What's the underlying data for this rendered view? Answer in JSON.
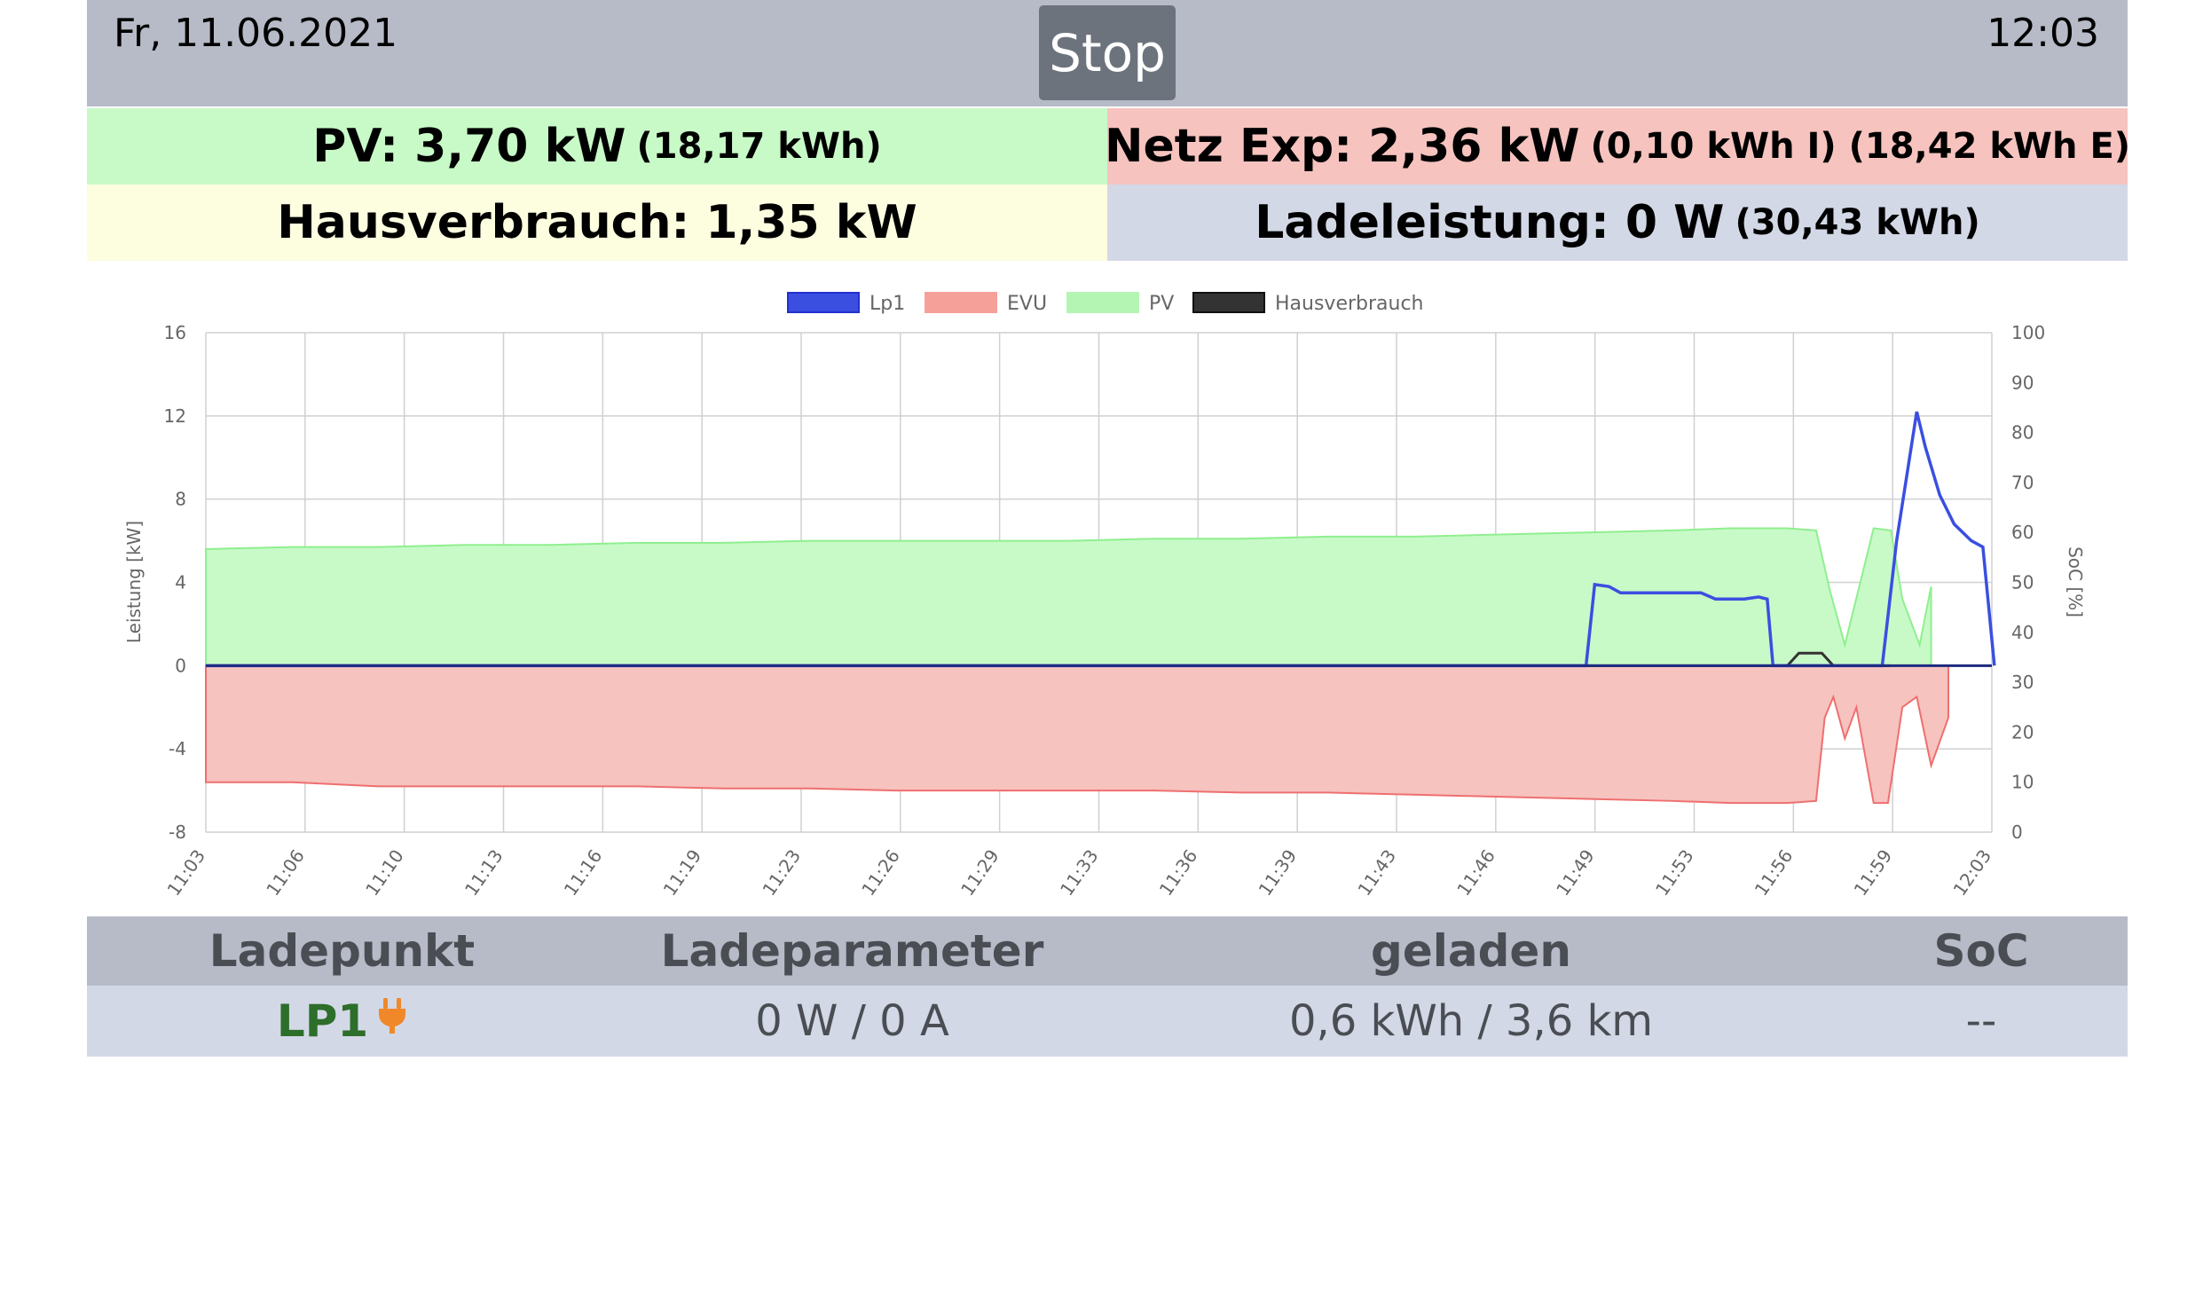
{
  "header": {
    "date": "Fr, 11.06.2021",
    "time": "12:03",
    "stop_label": "Stop"
  },
  "tiles": {
    "pv": {
      "main": "PV: 3,70 kW",
      "sub": "(18,17 kWh)"
    },
    "netz": {
      "main": "Netz Exp: 2,36 kW",
      "sub": "(0,10 kWh I) (18,42 kWh E)"
    },
    "haus": {
      "main": "Hausverbrauch: 1,35 kW"
    },
    "lade": {
      "main": "Ladeleistung: 0 W",
      "sub": "(30,43 kWh)"
    }
  },
  "colors": {
    "pv_fill": "#c8fac8",
    "pv_line": "#8fef8f",
    "evu_fill": "#f6c3bf",
    "evu_line": "#ef6f6f",
    "lp1": "#3a4fe0",
    "haus": "#333333",
    "grid": "#d0d0d0",
    "axis_text": "#666666",
    "lp_name": "#2c6e2a",
    "plug_icon": "#f0882a"
  },
  "chart_data": {
    "type": "line",
    "legend": [
      {
        "name": "Lp1",
        "color": "#3a4fe0"
      },
      {
        "name": "EVU",
        "color": "#f6a09a"
      },
      {
        "name": "PV",
        "color": "#b4f5b4"
      },
      {
        "name": "Hausverbrauch",
        "color": "#333333"
      }
    ],
    "legend_position": "top",
    "ylabel": "Leistung [kW]",
    "y2label": "SoC [%]",
    "ylim": [
      -8,
      16
    ],
    "yticks": [
      -8,
      -4,
      0,
      4,
      8,
      12,
      16
    ],
    "y2lim": [
      0,
      100
    ],
    "y2ticks": [
      0,
      10,
      20,
      30,
      40,
      50,
      60,
      70,
      80,
      90,
      100
    ],
    "xlim": [
      0,
      60
    ],
    "xtick_labels": [
      "11:03",
      "11:06",
      "11:10",
      "11:13",
      "11:16",
      "11:19",
      "11:23",
      "11:26",
      "11:29",
      "11:33",
      "11:36",
      "11:39",
      "11:43",
      "11:46",
      "11:49",
      "11:53",
      "11:56",
      "11:59",
      "12:03"
    ],
    "grid": true,
    "series": [
      {
        "name": "PV",
        "points": [
          [
            0,
            5.6
          ],
          [
            3,
            5.7
          ],
          [
            6,
            5.7
          ],
          [
            9,
            5.8
          ],
          [
            12,
            5.8
          ],
          [
            15,
            5.9
          ],
          [
            18,
            5.9
          ],
          [
            21,
            6.0
          ],
          [
            24,
            6.0
          ],
          [
            27,
            6.0
          ],
          [
            30,
            6.0
          ],
          [
            33,
            6.1
          ],
          [
            36,
            6.1
          ],
          [
            39,
            6.2
          ],
          [
            42,
            6.2
          ],
          [
            45,
            6.3
          ],
          [
            48,
            6.4
          ],
          [
            51,
            6.5
          ],
          [
            53,
            6.6
          ],
          [
            55,
            6.6
          ],
          [
            56,
            6.5
          ],
          [
            56.5,
            3.5
          ],
          [
            57,
            1.0
          ],
          [
            58,
            6.6
          ],
          [
            58.6,
            6.5
          ],
          [
            59,
            3.2
          ],
          [
            59.6,
            1.0
          ],
          [
            60,
            3.8
          ]
        ]
      },
      {
        "name": "EVU",
        "points": [
          [
            0,
            -5.6
          ],
          [
            3,
            -5.6
          ],
          [
            6,
            -5.8
          ],
          [
            9,
            -5.8
          ],
          [
            12,
            -5.8
          ],
          [
            15,
            -5.8
          ],
          [
            18,
            -5.9
          ],
          [
            21,
            -5.9
          ],
          [
            24,
            -6.0
          ],
          [
            27,
            -6.0
          ],
          [
            30,
            -6.0
          ],
          [
            33,
            -6.0
          ],
          [
            36,
            -6.1
          ],
          [
            39,
            -6.1
          ],
          [
            42,
            -6.2
          ],
          [
            45,
            -6.3
          ],
          [
            48,
            -6.4
          ],
          [
            51,
            -6.5
          ],
          [
            53,
            -6.6
          ],
          [
            55,
            -6.6
          ],
          [
            56,
            -6.5
          ],
          [
            56.3,
            -2.5
          ],
          [
            56.6,
            -1.5
          ],
          [
            57,
            -3.5
          ],
          [
            57.4,
            -2.0
          ],
          [
            58,
            -6.6
          ],
          [
            58.5,
            -6.6
          ],
          [
            59,
            -2.0
          ],
          [
            59.5,
            -1.5
          ],
          [
            60,
            -4.8
          ],
          [
            60.6,
            -2.5
          ]
        ]
      },
      {
        "name": "Lp1",
        "points": [
          [
            0,
            0
          ],
          [
            48,
            0
          ],
          [
            48.3,
            3.9
          ],
          [
            48.8,
            3.8
          ],
          [
            49.2,
            3.5
          ],
          [
            52,
            3.5
          ],
          [
            52.5,
            3.2
          ],
          [
            53.5,
            3.2
          ],
          [
            54,
            3.3
          ],
          [
            54.3,
            3.2
          ],
          [
            54.5,
            0
          ],
          [
            58.3,
            0
          ],
          [
            58.8,
            6.0
          ],
          [
            59.5,
            12.2
          ],
          [
            59.8,
            10.5
          ],
          [
            60.3,
            8.2
          ],
          [
            60.8,
            6.8
          ],
          [
            61.4,
            6.0
          ],
          [
            61.8,
            5.7
          ],
          [
            62.2,
            0
          ]
        ]
      },
      {
        "name": "Hausverbrauch",
        "points": [
          [
            0,
            0
          ],
          [
            55,
            0
          ],
          [
            55.4,
            0.6
          ],
          [
            56.2,
            0.6
          ],
          [
            56.6,
            0
          ],
          [
            57.6,
            0
          ],
          [
            58.6,
            0
          ]
        ]
      }
    ]
  },
  "table": {
    "headers": [
      "Ladepunkt",
      "Ladeparameter",
      "geladen",
      "SoC"
    ],
    "rows": [
      {
        "ladepunkt": "LP1",
        "plug_icon": "plug-icon",
        "ladeparameter": "0 W / 0 A",
        "geladen": "0,6 kWh / 3,6 km",
        "soc": "--"
      }
    ]
  }
}
